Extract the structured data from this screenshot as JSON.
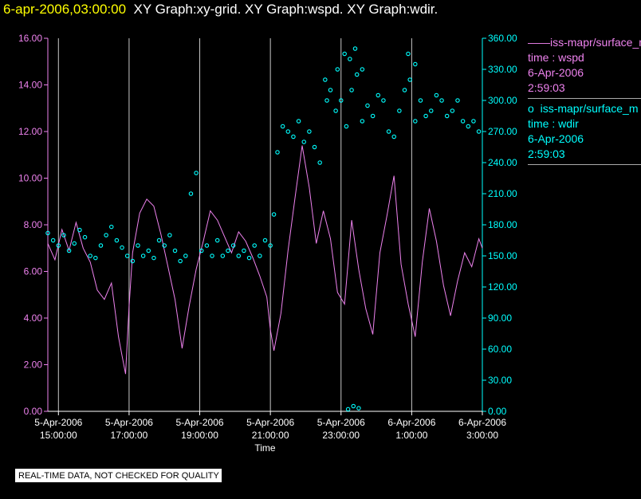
{
  "header": {
    "timestamp": "6-apr-2006,03:00:00",
    "graph_titles": "XY Graph:xy-grid.  XY Graph:wspd.  XY Graph:wdir."
  },
  "legend": {
    "series_1": {
      "name": "iss-mapr/surface_m",
      "prefix": "——",
      "field": "time : wspd",
      "date": "6-Apr-2006",
      "time": "2:59:03"
    },
    "series_2": {
      "name": "iss-mapr/surface_m",
      "prefix": "o",
      "field": "time : wdir",
      "date": "6-Apr-2006",
      "time": "2:59:03"
    }
  },
  "disclaimer": "REAL-TIME DATA, NOT CHECKED FOR QUALITY",
  "colors": {
    "background": "#000000",
    "wspd": "#ee82ee",
    "wdir": "#00ffff",
    "grid": "#c8c8c8",
    "title": "#ffff00"
  },
  "chart_data": {
    "type": "line",
    "xlabel": "Time",
    "x_ticks": [
      {
        "hour": 0,
        "date": "5-Apr-2006",
        "time": "15:00:00"
      },
      {
        "hour": 2,
        "date": "5-Apr-2006",
        "time": "17:00:00"
      },
      {
        "hour": 4,
        "date": "5-Apr-2006",
        "time": "19:00:00"
      },
      {
        "hour": 6,
        "date": "5-Apr-2006",
        "time": "21:00:00"
      },
      {
        "hour": 8,
        "date": "5-Apr-2006",
        "time": "23:00:00"
      },
      {
        "hour": 10,
        "date": "6-Apr-2006",
        "time": "1:00:00"
      },
      {
        "hour": 12,
        "date": "6-Apr-2006",
        "time": "3:00:00"
      }
    ],
    "xlim_hours_since_5-Apr-2006_15:00": [
      -0.3,
      12.0
    ],
    "grid": "vertical lines at each x tick",
    "y_left": {
      "ylim": [
        0,
        16
      ],
      "ticks": [
        "0.00",
        "2.00",
        "4.00",
        "6.00",
        "8.00",
        "10.00",
        "12.00",
        "14.00",
        "16.00"
      ]
    },
    "y_right": {
      "ylim": [
        0,
        360
      ],
      "ticks": [
        "0.00",
        "30.00",
        "60.00",
        "90.00",
        "120.00",
        "150.00",
        "180.00",
        "210.00",
        "240.00",
        "270.00",
        "300.00",
        "330.00",
        "360.00"
      ]
    },
    "series": [
      {
        "name": "wspd",
        "axis": "left",
        "style": "line",
        "x": [
          -0.3,
          -0.1,
          0.1,
          0.3,
          0.5,
          0.7,
          0.9,
          1.1,
          1.3,
          1.5,
          1.7,
          1.8,
          1.9,
          2.0,
          2.1,
          2.3,
          2.5,
          2.7,
          2.9,
          3.1,
          3.3,
          3.5,
          3.7,
          3.9,
          4.1,
          4.3,
          4.5,
          4.7,
          4.9,
          5.1,
          5.3,
          5.5,
          5.7,
          5.9,
          6.0,
          6.1,
          6.3,
          6.5,
          6.7,
          6.9,
          7.1,
          7.3,
          7.5,
          7.7,
          7.9,
          8.1,
          8.3,
          8.5,
          8.7,
          8.9,
          9.1,
          9.3,
          9.5,
          9.7,
          9.9,
          10.1,
          10.3,
          10.5,
          10.7,
          10.9,
          11.1,
          11.3,
          11.5,
          11.7,
          11.9,
          12.0
        ],
        "values": [
          7.2,
          6.5,
          7.8,
          6.9,
          8.1,
          7.0,
          6.4,
          5.2,
          4.8,
          5.5,
          3.2,
          2.4,
          1.6,
          4.5,
          6.8,
          8.5,
          9.1,
          8.8,
          7.6,
          6.2,
          4.8,
          2.7,
          4.5,
          6.1,
          7.3,
          8.6,
          8.2,
          7.5,
          6.8,
          7.7,
          7.3,
          6.6,
          5.8,
          4.9,
          3.5,
          2.6,
          4.2,
          6.9,
          9.2,
          11.4,
          9.6,
          7.2,
          8.6,
          7.4,
          5.1,
          4.6,
          8.2,
          6.1,
          4.4,
          3.3,
          6.8,
          8.4,
          10.1,
          6.3,
          4.6,
          3.2,
          6.4,
          8.7,
          7.3,
          5.4,
          4.1,
          5.6,
          6.8,
          6.2,
          7.4,
          7.0
        ]
      },
      {
        "name": "wdir",
        "axis": "right",
        "style": "scatter",
        "x": [
          -0.3,
          -0.15,
          0.0,
          0.15,
          0.3,
          0.45,
          0.6,
          0.75,
          0.9,
          1.05,
          1.2,
          1.35,
          1.5,
          1.65,
          1.8,
          1.95,
          2.1,
          2.25,
          2.4,
          2.55,
          2.7,
          2.85,
          3.0,
          3.15,
          3.3,
          3.45,
          3.6,
          3.75,
          3.9,
          4.05,
          4.2,
          4.35,
          4.5,
          4.65,
          4.8,
          4.95,
          5.1,
          5.25,
          5.4,
          5.55,
          5.7,
          5.85,
          6.0,
          6.1,
          6.2,
          6.35,
          6.5,
          6.65,
          6.8,
          6.95,
          7.1,
          7.25,
          7.4,
          7.55,
          7.7,
          7.85,
          8.0,
          8.15,
          8.3,
          8.45,
          8.6,
          8.75,
          8.9,
          9.05,
          9.2,
          9.35,
          9.5,
          9.65,
          9.8,
          9.95,
          10.1,
          10.25,
          10.4,
          10.55,
          10.7,
          10.85,
          11.0,
          11.15,
          11.3,
          11.45,
          11.6,
          11.75,
          11.9,
          7.6,
          7.9,
          8.1,
          8.25,
          8.4,
          8.6,
          9.9,
          10.1,
          8.2,
          8.35,
          8.5
        ],
        "values": [
          172,
          165,
          160,
          170,
          155,
          162,
          175,
          168,
          150,
          148,
          160,
          170,
          178,
          165,
          158,
          150,
          145,
          160,
          150,
          155,
          148,
          165,
          160,
          170,
          155,
          145,
          150,
          210,
          230,
          155,
          160,
          150,
          165,
          150,
          155,
          160,
          150,
          155,
          148,
          160,
          150,
          165,
          160,
          190,
          250,
          275,
          270,
          265,
          280,
          260,
          270,
          255,
          240,
          320,
          310,
          290,
          300,
          275,
          310,
          325,
          280,
          295,
          285,
          305,
          300,
          270,
          265,
          290,
          310,
          320,
          280,
          300,
          285,
          290,
          305,
          300,
          285,
          290,
          300,
          280,
          275,
          280,
          270,
          300,
          330,
          345,
          340,
          350,
          330,
          345,
          335,
          2,
          5,
          3
        ]
      }
    ]
  }
}
